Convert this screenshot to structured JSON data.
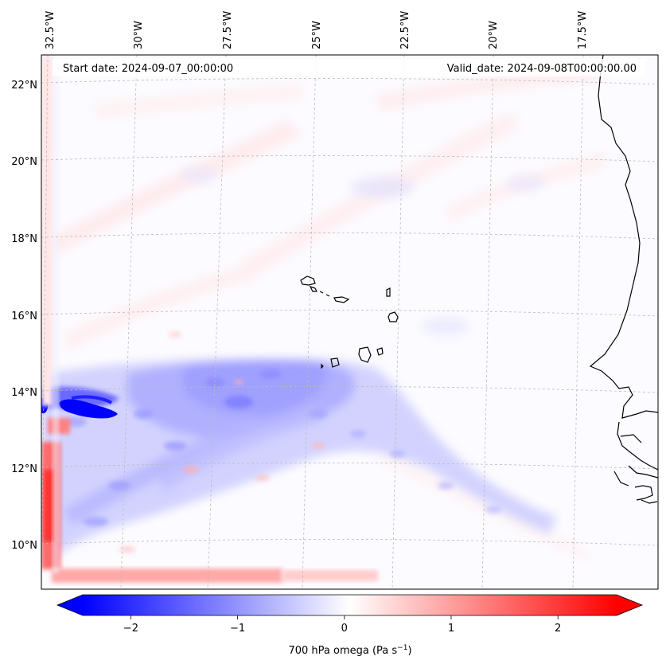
{
  "map": {
    "start_date": "Start date: 2024-09-07_00:00:00",
    "valid_date": "Valid_date: 2024-09-08T00:00:00.00",
    "lon_labels": [
      "32.5°W",
      "30°W",
      "27.5°W",
      "25°W",
      "22.5°W",
      "20°W",
      "17.5°W"
    ],
    "lat_labels": [
      "22°N",
      "20°N",
      "18°N",
      "16°N",
      "14°N",
      "12°N",
      "10°N"
    ]
  },
  "colorbar": {
    "title_main": "700 hPa omega (Pa s",
    "title_sup": "−1",
    "title_close": ")",
    "tick_labels": [
      "−2",
      "−1",
      "0",
      "1",
      "2"
    ],
    "ticks": [
      -2,
      -1,
      0,
      1,
      2
    ],
    "range": [
      -2.6,
      2.6
    ],
    "colors": {
      "negative": "#0000ff",
      "zero": "#ffffff",
      "positive": "#ff0000"
    }
  },
  "colors": {
    "coastline": "#000000",
    "gridline": "#bbbbbb",
    "background_tint": "#fbfaff"
  }
}
